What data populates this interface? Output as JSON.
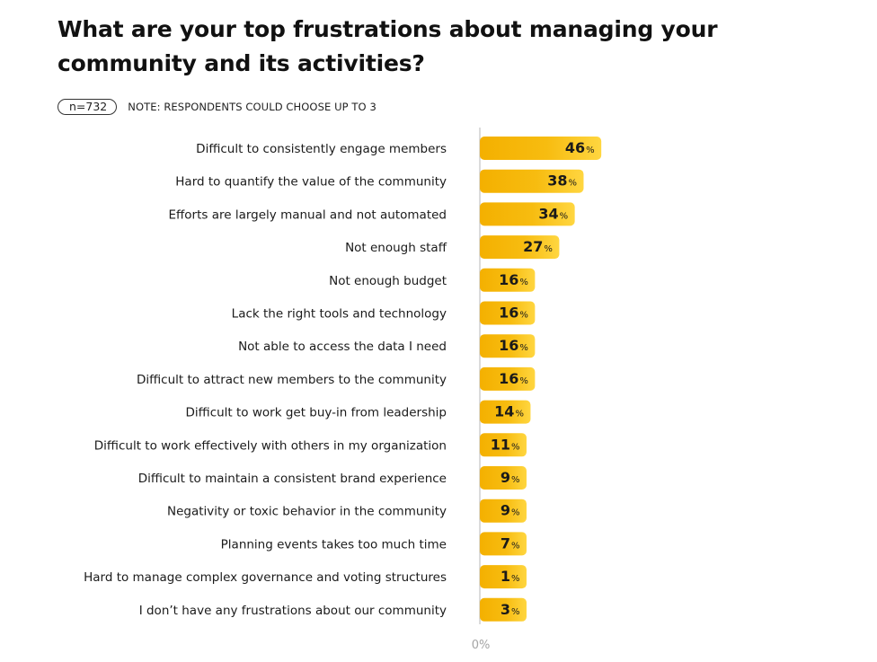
{
  "title": "What are your top frustrations about managing your community and its activities?",
  "sample": "n=732",
  "note": "NOTE: RESPONDENTS COULD CHOOSE UP TO 3",
  "colors": {
    "bar_main": "#f5b400",
    "bar_light": "#fdd23a",
    "axis": "#cfcfcf",
    "text": "#1a1a1a"
  },
  "chart_data": {
    "type": "bar",
    "orientation": "horizontal",
    "title": "What are your top frustrations about managing your community and its activities?",
    "unit": "%",
    "axis_min_label": "0%",
    "xlim": [
      0,
      100
    ],
    "categories": [
      "Difficult to consistently engage members",
      "Hard to quantify the value of the community",
      "Efforts are largely manual and not automated",
      "Not enough staff",
      "Not enough budget",
      "Lack the right tools and technology",
      "Not able to access the data I need",
      "Difficult to attract new members to the community",
      "Difficult to work get buy-in from leadership",
      "Difficult to work effectively with others in my organization",
      "Difficult to maintain a consistent brand experience",
      "Negativity or toxic behavior in the community",
      "Planning events takes too much time",
      "Hard to manage complex governance and voting structures",
      "I don’t have any frustrations about our community"
    ],
    "values": [
      46,
      38,
      34,
      27,
      16,
      16,
      16,
      16,
      14,
      11,
      9,
      9,
      7,
      1,
      3
    ]
  }
}
